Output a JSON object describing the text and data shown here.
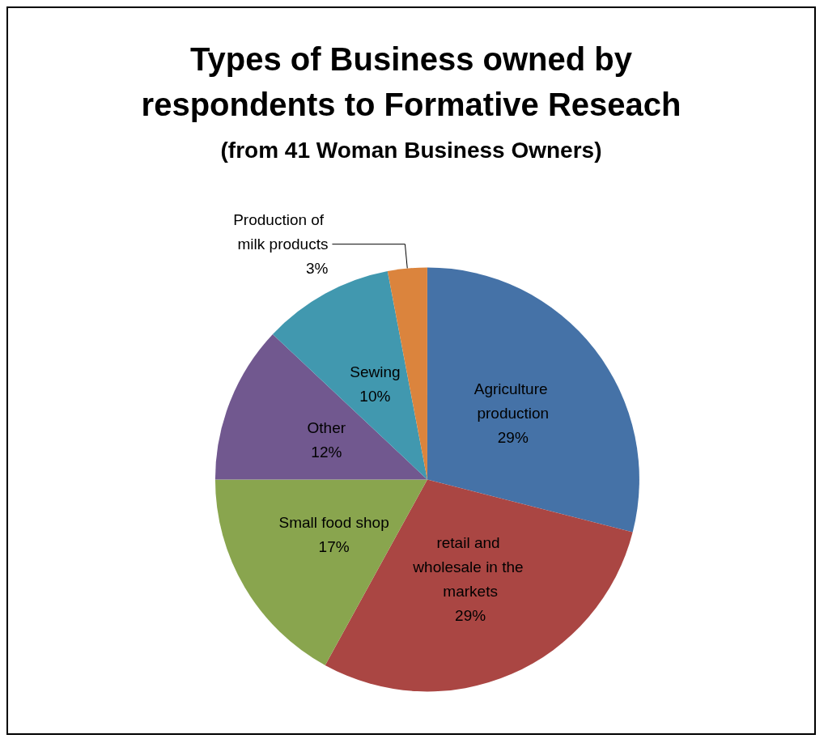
{
  "chart_data": {
    "type": "pie",
    "title": "Types of Business owned by\nrespondents to Formative Reseach",
    "subtitle": "(from 41 Woman Business Owners)",
    "categories": [
      "Agriculture production",
      "retail and wholesale in the markets",
      "Small food shop",
      "Other",
      "Sewing",
      "Production of milk products"
    ],
    "values": [
      29,
      29,
      17,
      12,
      10,
      3
    ],
    "colors": [
      "#4572a7",
      "#aa4643",
      "#89a54e",
      "#71588f",
      "#4198af",
      "#db843d"
    ],
    "value_labels": [
      "29%",
      "29%",
      "17%",
      "12%",
      "10%",
      "3%"
    ],
    "legend": false
  }
}
